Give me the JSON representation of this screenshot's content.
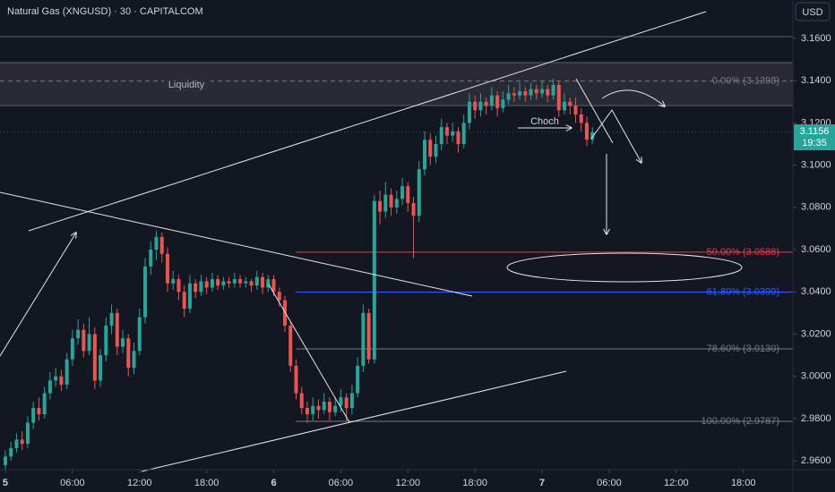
{
  "chart_data": {
    "type": "candlestick",
    "title": "Natural Gas (XNGUSD) · 30 · CAPITALCOM",
    "currency": "USD",
    "countdown": "19:35",
    "annotations": {
      "liquidity": "Liquidity",
      "choch": "Choch"
    },
    "up_color": "#26a69a",
    "down_color": "#ef5350",
    "grid": false,
    "xlim": [
      -0.48,
      70.43
    ],
    "ylim": [
      2.9558,
      3.1782
    ],
    "xticks": [
      {
        "value": 0,
        "label": "5"
      },
      {
        "value": 6,
        "label": "06:00"
      },
      {
        "value": 12,
        "label": "12:00"
      },
      {
        "value": 18,
        "label": "18:00"
      },
      {
        "value": 24,
        "label": "6"
      },
      {
        "value": 30,
        "label": "06:00"
      },
      {
        "value": 36,
        "label": "12:00"
      },
      {
        "value": 42,
        "label": "18:00"
      },
      {
        "value": 48,
        "label": "7"
      },
      {
        "value": 54,
        "label": "06:00"
      },
      {
        "value": 60,
        "label": "12:00"
      },
      {
        "value": 66,
        "label": "18:00"
      }
    ],
    "yticks": [
      {
        "value": 3.16,
        "label": "3.1600"
      },
      {
        "value": 3.14,
        "label": "3.1400"
      },
      {
        "value": 3.12,
        "label": "3.1200"
      },
      {
        "value": 3.1,
        "label": "3.1000"
      },
      {
        "value": 3.08,
        "label": "3.0800"
      },
      {
        "value": 3.06,
        "label": "3.0600"
      },
      {
        "value": 3.04,
        "label": "3.0400"
      },
      {
        "value": 3.02,
        "label": "3.0200"
      },
      {
        "value": 3.0,
        "label": "3.0000"
      },
      {
        "value": 2.98,
        "label": "2.9800"
      },
      {
        "value": 2.96,
        "label": "2.9600"
      }
    ],
    "fib_levels": [
      {
        "value": 3.1398,
        "label": "0.00% (3.1398)",
        "color": "#787b86"
      },
      {
        "value": 3.0588,
        "label": "50.00% (3.0588)",
        "color": "#f23645"
      },
      {
        "value": 3.0399,
        "label": "61.80% (3.0399)",
        "color": "#2962ff"
      },
      {
        "value": 3.013,
        "label": "78.60% (3.0130)",
        "color": "#787b86"
      },
      {
        "value": 2.9787,
        "label": "100.00% (2.9787)",
        "color": "#787b86"
      }
    ],
    "x": [
      0,
      0.5,
      1,
      1.5,
      2,
      2.5,
      3,
      3.5,
      4,
      4.5,
      5,
      5.5,
      6,
      6.5,
      7,
      7.5,
      8,
      8.5,
      9,
      9.5,
      10,
      10.5,
      11,
      11.5,
      12,
      12.5,
      13,
      13.5,
      14,
      14.5,
      15,
      15.5,
      16,
      16.5,
      17,
      17.5,
      18,
      18.5,
      19,
      19.5,
      20,
      20.5,
      21,
      21.5,
      22,
      22.5,
      23,
      23.5,
      24,
      24.5,
      25,
      25.5,
      26,
      26.5,
      27,
      27.5,
      28,
      28.5,
      29,
      29.5,
      30,
      30.5,
      31,
      31.5,
      32,
      32.5,
      33,
      33.5,
      34,
      34.5,
      35,
      35.5,
      36,
      36.5,
      37,
      37.5,
      38,
      38.5,
      39,
      39.5,
      40,
      40.5,
      41,
      41.5,
      42,
      42.5,
      43,
      43.5,
      44,
      44.5,
      45,
      45.5,
      46,
      46.5,
      47,
      47.5,
      48,
      48.5,
      49,
      49.5,
      50,
      50.5,
      51,
      51.5,
      52,
      52.5
    ],
    "candles": [
      [
        2.958,
        2.965,
        2.956,
        2.962
      ],
      [
        2.962,
        2.969,
        2.96,
        2.966
      ],
      [
        2.966,
        2.973,
        2.964,
        2.97
      ],
      [
        2.97,
        2.974,
        2.965,
        2.968
      ],
      [
        2.968,
        2.981,
        2.966,
        2.978
      ],
      [
        2.978,
        2.988,
        2.975,
        2.985
      ],
      [
        2.985,
        2.99,
        2.979,
        2.982
      ],
      [
        2.982,
        2.995,
        2.98,
        2.992
      ],
      [
        2.992,
        3.002,
        2.989,
        2.998
      ],
      [
        2.998,
        3.004,
        2.995,
        3.0
      ],
      [
        3.0,
        3.003,
        2.993,
        2.996
      ],
      [
        2.996,
        3.011,
        2.994,
        3.008
      ],
      [
        3.008,
        3.022,
        3.005,
        3.018
      ],
      [
        3.018,
        3.027,
        3.015,
        3.022
      ],
      [
        3.022,
        3.025,
        3.009,
        3.012
      ],
      [
        3.012,
        3.028,
        3.01,
        3.02
      ],
      [
        3.02,
        3.023,
        2.994,
        2.998
      ],
      [
        2.998,
        3.013,
        2.995,
        3.01
      ],
      [
        3.01,
        3.028,
        3.007,
        3.024
      ],
      [
        3.024,
        3.034,
        3.02,
        3.03
      ],
      [
        3.03,
        3.032,
        3.01,
        3.014
      ],
      [
        3.014,
        3.022,
        3.011,
        3.018
      ],
      [
        3.018,
        3.02,
        3.0,
        3.004
      ],
      [
        3.004,
        3.016,
        3.001,
        3.012
      ],
      [
        3.012,
        3.032,
        3.01,
        3.028
      ],
      [
        3.028,
        3.056,
        3.025,
        3.052
      ],
      [
        3.052,
        3.064,
        3.048,
        3.06
      ],
      [
        3.06,
        3.069,
        3.055,
        3.066
      ],
      [
        3.066,
        3.068,
        3.054,
        3.058
      ],
      [
        3.058,
        3.061,
        3.04,
        3.044
      ],
      [
        3.044,
        3.05,
        3.041,
        3.046
      ],
      [
        3.046,
        3.048,
        3.036,
        3.04
      ],
      [
        3.04,
        3.043,
        3.028,
        3.032
      ],
      [
        3.032,
        3.048,
        3.03,
        3.044
      ],
      [
        3.044,
        3.046,
        3.037,
        3.04
      ],
      [
        3.04,
        3.048,
        3.038,
        3.045
      ],
      [
        3.045,
        3.047,
        3.039,
        3.042
      ],
      [
        3.042,
        3.049,
        3.04,
        3.046
      ],
      [
        3.046,
        3.048,
        3.041,
        3.043
      ],
      [
        3.043,
        3.047,
        3.041,
        3.045
      ],
      [
        3.045,
        3.047,
        3.042,
        3.044
      ],
      [
        3.044,
        3.049,
        3.042,
        3.046
      ],
      [
        3.046,
        3.048,
        3.042,
        3.044
      ],
      [
        3.044,
        3.047,
        3.042,
        3.045
      ],
      [
        3.045,
        3.046,
        3.04,
        3.043
      ],
      [
        3.043,
        3.05,
        3.041,
        3.047
      ],
      [
        3.047,
        3.049,
        3.039,
        3.042
      ],
      [
        3.042,
        3.048,
        3.04,
        3.046
      ],
      [
        3.046,
        3.048,
        3.038,
        3.04
      ],
      [
        3.04,
        3.042,
        3.033,
        3.036
      ],
      [
        3.036,
        3.038,
        3.021,
        3.024
      ],
      [
        3.024,
        3.026,
        3.002,
        3.005
      ],
      [
        3.005,
        3.008,
        2.989,
        2.992
      ],
      [
        2.992,
        2.995,
        2.982,
        2.985
      ],
      [
        2.985,
        2.988,
        2.978,
        2.982
      ],
      [
        2.982,
        2.99,
        2.979,
        2.986
      ],
      [
        2.986,
        2.989,
        2.98,
        2.984
      ],
      [
        2.984,
        2.992,
        2.982,
        2.988
      ],
      [
        2.988,
        2.99,
        2.979,
        2.983
      ],
      [
        2.983,
        2.99,
        2.981,
        2.986
      ],
      [
        2.986,
        2.994,
        2.983,
        2.99
      ],
      [
        2.99,
        2.992,
        2.979,
        2.985
      ],
      [
        2.985,
        2.996,
        2.982,
        2.992
      ],
      [
        2.992,
        3.009,
        2.99,
        3.005
      ],
      [
        3.005,
        3.034,
        3.002,
        3.03
      ],
      [
        3.03,
        3.032,
        3.006,
        3.008
      ],
      [
        3.008,
        3.086,
        3.006,
        3.083
      ],
      [
        3.083,
        3.088,
        3.072,
        3.078
      ],
      [
        3.078,
        3.092,
        3.075,
        3.086
      ],
      [
        3.086,
        3.089,
        3.076,
        3.08
      ],
      [
        3.08,
        3.088,
        3.077,
        3.084
      ],
      [
        3.084,
        3.094,
        3.081,
        3.09
      ],
      [
        3.09,
        3.092,
        3.078,
        3.082
      ],
      [
        3.082,
        3.085,
        3.056,
        3.076
      ],
      [
        3.076,
        3.102,
        3.073,
        3.098
      ],
      [
        3.098,
        3.116,
        3.095,
        3.112
      ],
      [
        3.112,
        3.115,
        3.1,
        3.104
      ],
      [
        3.104,
        3.114,
        3.101,
        3.11
      ],
      [
        3.11,
        3.122,
        3.107,
        3.118
      ],
      [
        3.118,
        3.12,
        3.11,
        3.114
      ],
      [
        3.114,
        3.12,
        3.111,
        3.116
      ],
      [
        3.116,
        3.118,
        3.106,
        3.11
      ],
      [
        3.11,
        3.124,
        3.108,
        3.12
      ],
      [
        3.12,
        3.134,
        3.117,
        3.13
      ],
      [
        3.13,
        3.133,
        3.122,
        3.126
      ],
      [
        3.126,
        3.134,
        3.123,
        3.13
      ],
      [
        3.13,
        3.132,
        3.124,
        3.128
      ],
      [
        3.128,
        3.137,
        3.126,
        3.133
      ],
      [
        3.133,
        3.135,
        3.123,
        3.127
      ],
      [
        3.127,
        3.135,
        3.125,
        3.131
      ],
      [
        3.131,
        3.138,
        3.129,
        3.134
      ],
      [
        3.134,
        3.137,
        3.13,
        3.133
      ],
      [
        3.133,
        3.139,
        3.131,
        3.135
      ],
      [
        3.135,
        3.137,
        3.13,
        3.133
      ],
      [
        3.133,
        3.139,
        3.131,
        3.136
      ],
      [
        3.136,
        3.138,
        3.131,
        3.134
      ],
      [
        3.134,
        3.14,
        3.132,
        3.136
      ],
      [
        3.136,
        3.138,
        3.13,
        3.133
      ],
      [
        3.133,
        3.141,
        3.131,
        3.138
      ],
      [
        3.138,
        3.14,
        3.123,
        3.126
      ],
      [
        3.126,
        3.134,
        3.124,
        3.13
      ],
      [
        3.13,
        3.132,
        3.124,
        3.128
      ],
      [
        3.128,
        3.132,
        3.12,
        3.124
      ],
      [
        3.124,
        3.127,
        3.116,
        3.12
      ],
      [
        3.12,
        3.123,
        3.109,
        3.112
      ],
      [
        3.112,
        3.118,
        3.11,
        3.1156
      ]
    ]
  }
}
